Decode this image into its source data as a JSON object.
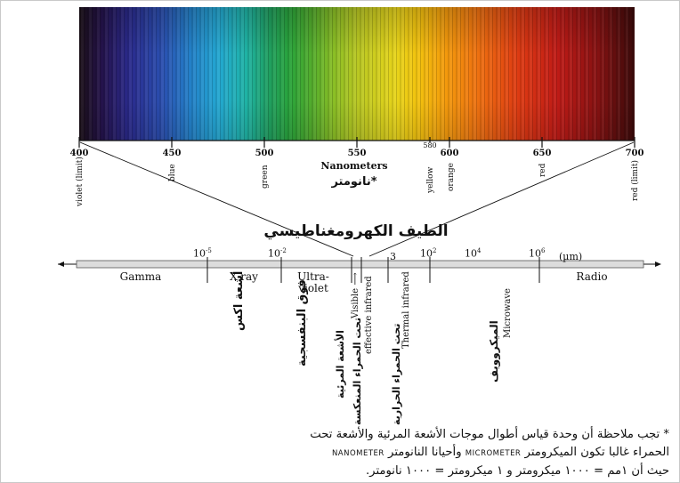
{
  "visible_scale": {
    "ticks": [
      "400",
      "450",
      "500",
      "550",
      "600",
      "650",
      "700"
    ],
    "minor_label": "580",
    "unit_label": "Nanometers",
    "unit_label_ar": "نانومتر*",
    "color_names": [
      {
        "text": "violet (limit)",
        "nm": 400
      },
      {
        "text": "blue",
        "nm": 450
      },
      {
        "text": "green",
        "nm": 500
      },
      {
        "text": "yellow",
        "nm": 580
      },
      {
        "text": "orange",
        "nm": 600
      },
      {
        "text": "red",
        "nm": 650
      },
      {
        "text": "red (limit)",
        "nm": 700
      }
    ]
  },
  "spectrum_title_ar": "الطيف الكهرومغناطيسي",
  "scale_bar": {
    "exponent_labels": {
      "e1": "10",
      "e1_sup": "-5",
      "e2": "10",
      "e2_sup": "-2",
      "e3": "3",
      "e4": "10",
      "e4_sup": "2",
      "e5": "10",
      "e5_sup": "4",
      "e6": "10",
      "e6_sup": "6",
      "unit": "(µm)"
    },
    "regions": {
      "gamma": "Gamma",
      "xray": "X-ray",
      "uv_line1": "Ultra-",
      "uv_line2": "violet",
      "radio": "Radio"
    }
  },
  "vertical_labels": {
    "xray_ar": "أشعة اكس",
    "uv_ar": "فوق البنفسجية",
    "visible": "Visible",
    "visible_ar": "الأشعة المرئية",
    "effective_ir": "effective infrared",
    "effective_ir_ar": "تحت الحمراء المنعكسة",
    "thermal_ir": "Thermal infrared",
    "thermal_ir_ar": "تحت الحمراء الحرارية",
    "microwave": "Microwave",
    "microwave_ar": "الميكروويف"
  },
  "note": {
    "line1": "* تجب ملاحظة أن وحدة قياس أطوال موجات الأشعة المرئية والأشعة تحت",
    "line2_a": "الحمراء غالبا تكون الميكرومتر",
    "line2_b": "MICROMETER",
    "line2_c": "وأحيانا النانومتر",
    "line2_d": "NANOMETER",
    "line3": "حيث أن ١مم = ١٠٠٠ ميكرومتر و ١ ميكرومتر = ١٠٠٠ نانومتر."
  },
  "colors": {
    "bar_fill": "#dcdcdc",
    "ink": "#111111"
  }
}
